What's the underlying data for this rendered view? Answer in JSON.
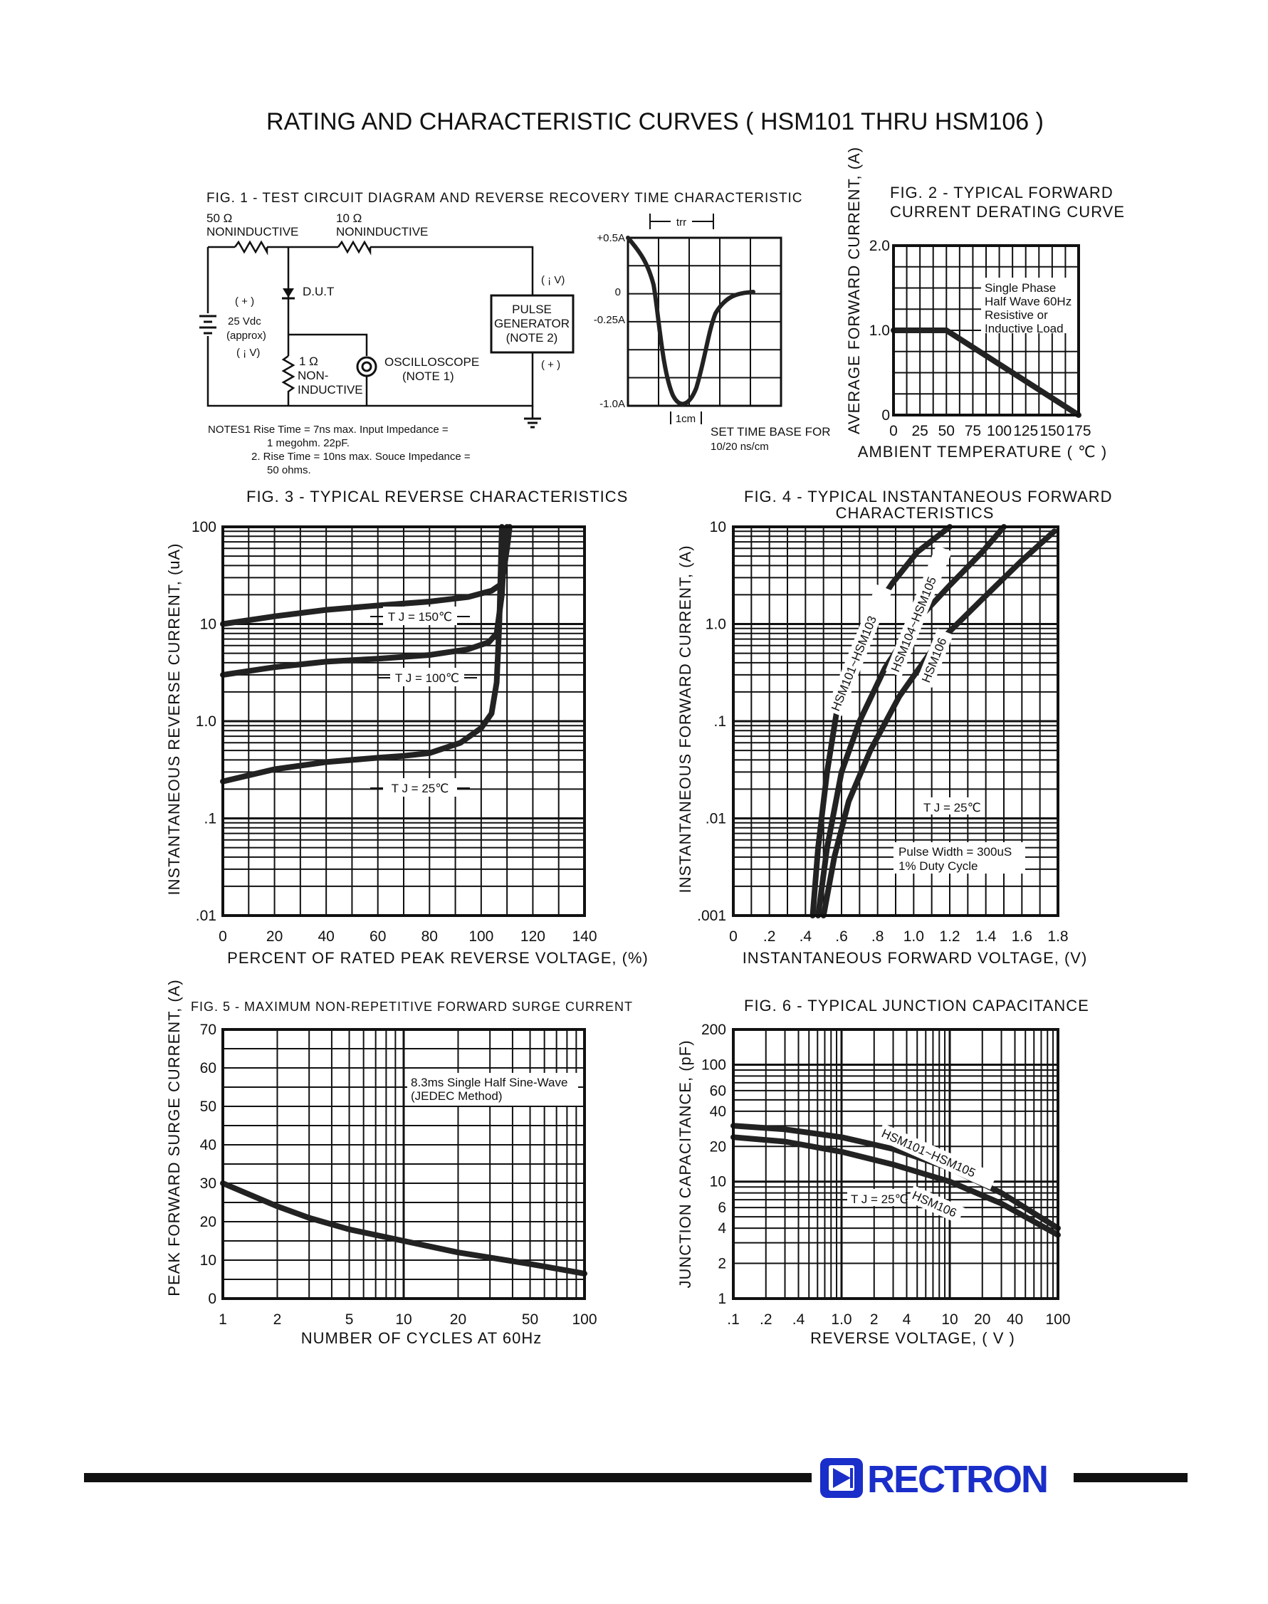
{
  "page": {
    "title": "RATING AND CHARACTERISTIC CURVES ( HSM101 THRU HSM106 )",
    "brand": "RECTRON"
  },
  "fig1": {
    "title": "FIG. 1 - TEST CIRCUIT DIAGRAM  AND REVERSE RECOVERY TIME CHARACTERISTIC",
    "r1_value": "50 Ω",
    "r1_type": "NONINDUCTIVE",
    "r2_value": "10 Ω",
    "r2_type": "NONINDUCTIVE",
    "dut": "D.U.T",
    "supply_plus": "( + )",
    "supply_voltage": "25 Vdc",
    "supply_approx": "(approx)",
    "supply_minus": "( ¡ V)",
    "r3_value": "1 Ω",
    "r3_type1": "NON-",
    "r3_type2": "INDUCTIVE",
    "scope": "OSCILLOSCOPE",
    "scope_note": "(NOTE 1)",
    "pg_line1": "PULSE",
    "pg_line2": "GENERATOR",
    "pg_line3": "(NOTE 2)",
    "pg_top": "( ¡ V)",
    "pg_bottom": "( + )",
    "notes": [
      "NOTES1  Rise Time = 7ns max. Input Impedance =",
      "1 megohm. 22pF.",
      "2. Rise Time = 10ns max. Souce Impedance =",
      "50 ohms."
    ],
    "waveform": {
      "trr_label": "trr",
      "y_labels": [
        "+0.5A",
        "0",
        "-0.25A",
        "-1.0A"
      ],
      "cm_label": "1cm",
      "timebase_1": "SET TIME BASE FOR",
      "timebase_2": "10/20 ns/cm"
    }
  },
  "chart_data": [
    {
      "id": "fig2",
      "type": "line",
      "title": "FIG. 2 - TYPICAL FORWARD CURRENT DERATING CURVE",
      "xlabel": "AMBIENT TEMPERATURE ( ℃ )",
      "ylabel": "AVERAGE FORWARD CURRENT, (A)",
      "xlim": [
        0,
        175
      ],
      "ylim": [
        0,
        2.0
      ],
      "xticks": [
        "0",
        "25",
        "50",
        "75",
        "100",
        "125",
        "150",
        "175"
      ],
      "yticks": [
        "0",
        "1.0",
        "2.0"
      ],
      "annotation": [
        "Single Phase",
        "Half Wave 60Hz",
        "Resistive or",
        "Inductive Load"
      ],
      "series": [
        {
          "x": [
            0,
            50,
            175
          ],
          "y": [
            1.0,
            1.0,
            0.0
          ]
        }
      ],
      "grid": true
    },
    {
      "id": "fig3",
      "type": "line",
      "title": "FIG. 3 - TYPICAL REVERSE CHARACTERISTICS",
      "xlabel": "PERCENT OF RATED PEAK REVERSE VOLTAGE, (%)",
      "ylabel": "INSTANTANEOUS REVERSE CURRENT, (uA)",
      "xlim": [
        0,
        140
      ],
      "ylim": [
        0.01,
        100
      ],
      "yscale": "log",
      "xticks": [
        "0",
        "20",
        "40",
        "60",
        "80",
        "100",
        "120",
        "140"
      ],
      "yticks": [
        ".01",
        ".1",
        "1.0",
        "10",
        "100"
      ],
      "series": [
        {
          "name": "T J = 150℃",
          "x": [
            0,
            20,
            40,
            60,
            80,
            95,
            104,
            108,
            110,
            111
          ],
          "y": [
            10,
            12,
            14,
            15.5,
            17,
            19,
            22,
            26,
            60,
            100
          ]
        },
        {
          "name": "T J = 100℃",
          "x": [
            0,
            20,
            40,
            60,
            80,
            95,
            103,
            106,
            108,
            109,
            110
          ],
          "y": [
            3.0,
            3.6,
            4.1,
            4.4,
            4.8,
            5.5,
            6.5,
            8,
            20,
            60,
            100
          ]
        },
        {
          "name": "T J = 25℃",
          "x": [
            0,
            20,
            40,
            60,
            70,
            80,
            92,
            100,
            104,
            106,
            107,
            108
          ],
          "y": [
            0.24,
            0.32,
            0.38,
            0.42,
            0.44,
            0.47,
            0.6,
            0.85,
            1.2,
            2.5,
            10,
            100
          ]
        }
      ],
      "grid": true
    },
    {
      "id": "fig4",
      "type": "line",
      "title": "FIG. 4 - TYPICAL INSTANTANEOUS FORWARD CHARACTERISTICS",
      "xlabel": "INSTANTANEOUS FORWARD VOLTAGE, (V)",
      "ylabel": "INSTANTANEOUS FORWARD CURRENT, (A)",
      "xlim": [
        0,
        1.8
      ],
      "ylim": [
        0.001,
        10
      ],
      "yscale": "log",
      "xticks": [
        "0",
        ".2",
        ".4",
        ".6",
        ".8",
        "1.0",
        "1.2",
        "1.4",
        "1.6",
        "1.8"
      ],
      "yticks": [
        ".001",
        ".01",
        ".1",
        "1.0",
        "10"
      ],
      "annotations": [
        "T J = 25℃",
        "Pulse Width = 300uS",
        "1% Duty Cycle"
      ],
      "series": [
        {
          "name": "HSM101~HSM103",
          "x": [
            0.44,
            0.47,
            0.52,
            0.58,
            0.66,
            0.76,
            0.88,
            1.02,
            1.2
          ],
          "y": [
            0.001,
            0.005,
            0.03,
            0.15,
            0.5,
            1.2,
            2.6,
            5.5,
            10
          ]
        },
        {
          "name": "HSM104~HSM105",
          "x": [
            0.47,
            0.52,
            0.6,
            0.7,
            0.84,
            1.0,
            1.2,
            1.38,
            1.5
          ],
          "y": [
            0.001,
            0.005,
            0.03,
            0.1,
            0.35,
            1.0,
            2.5,
            5.5,
            10
          ]
        },
        {
          "name": "HSM106",
          "x": [
            0.5,
            0.56,
            0.64,
            0.76,
            0.92,
            1.12,
            1.38,
            1.6,
            1.78
          ],
          "y": [
            0.001,
            0.004,
            0.015,
            0.05,
            0.18,
            0.6,
            1.8,
            4.5,
            9
          ]
        }
      ],
      "grid": true
    },
    {
      "id": "fig5",
      "type": "line",
      "title": "FIG. 5 - MAXIMUM NON-REPETITIVE FORWARD SURGE CURRENT",
      "xlabel": "NUMBER OF CYCLES AT 60Hz",
      "ylabel": "PEAK FORWARD SURGE CURRENT, (A)",
      "xlim": [
        1,
        100
      ],
      "xscale": "log",
      "ylim": [
        0,
        70
      ],
      "xticks": [
        "1",
        "2",
        "5",
        "10",
        "20",
        "50",
        "100"
      ],
      "yticks": [
        "0",
        "10",
        "20",
        "30",
        "40",
        "50",
        "60",
        "70"
      ],
      "annotation": [
        "8.3ms Single Half Sine-Wave",
        "(JEDEC Method)"
      ],
      "series": [
        {
          "x": [
            1,
            2,
            3,
            5,
            10,
            20,
            50,
            100
          ],
          "y": [
            30,
            24,
            21,
            18,
            15,
            12,
            9,
            6.5
          ]
        }
      ],
      "grid": true
    },
    {
      "id": "fig6",
      "type": "line",
      "title": "FIG. 6 - TYPICAL JUNCTION CAPACITANCE",
      "xlabel": "REVERSE VOLTAGE, ( V )",
      "ylabel": "JUNCTION CAPACITANCE, (pF)",
      "xlim": [
        0.1,
        100
      ],
      "xscale": "log",
      "ylim": [
        1,
        200
      ],
      "yscale": "log",
      "xticks": [
        ".1",
        ".2",
        ".4",
        "1.0",
        "2",
        "4",
        "10",
        "20",
        "40",
        "100"
      ],
      "yticks": [
        "1",
        "2",
        "4",
        "6",
        "10",
        "20",
        "40",
        "60",
        "100",
        "200"
      ],
      "annotations": [
        "T J = 25℃"
      ],
      "series": [
        {
          "name": "HSM101~HSM105",
          "x": [
            0.1,
            0.3,
            1,
            3,
            10,
            30,
            100
          ],
          "y": [
            30,
            28,
            24,
            19,
            13,
            8,
            4
          ]
        },
        {
          "name": "HSM106",
          "x": [
            0.1,
            0.3,
            1,
            3,
            10,
            30,
            100
          ],
          "y": [
            24,
            22,
            18,
            14,
            10,
            6.5,
            3.5
          ]
        }
      ],
      "grid": true
    }
  ]
}
